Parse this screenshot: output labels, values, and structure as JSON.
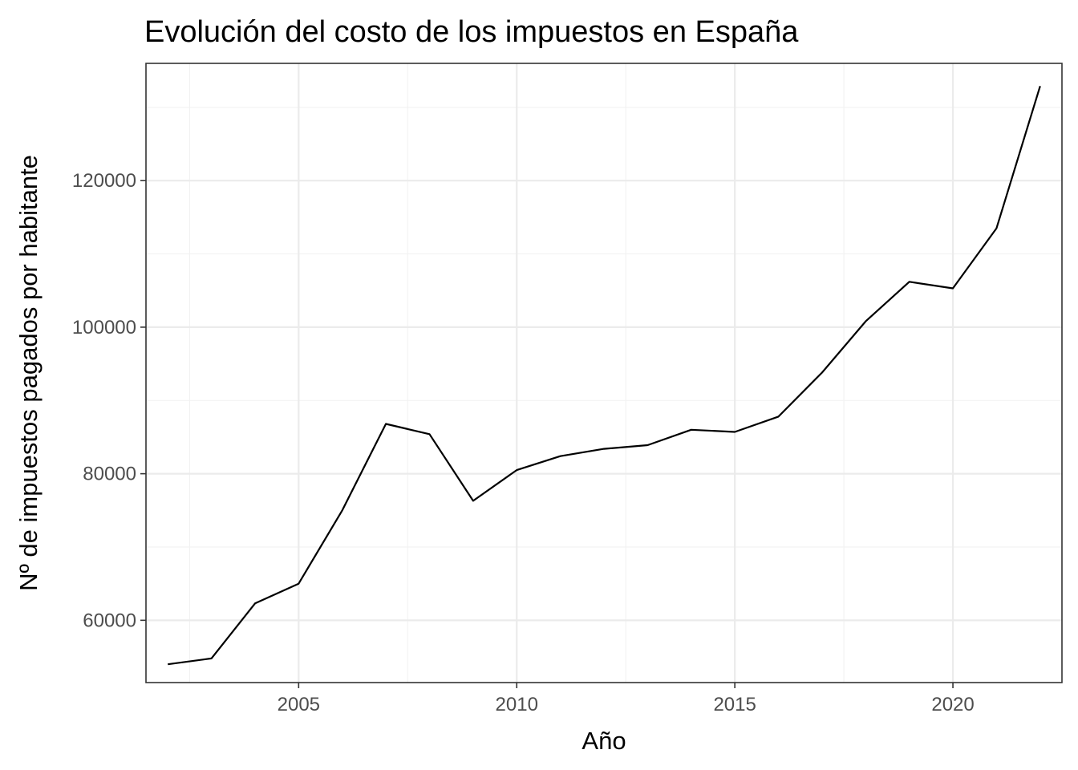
{
  "chart_data": {
    "type": "line",
    "title": "Evolución del costo de los impuestos en España",
    "xlabel": "Año",
    "ylabel": "Nº de impuestos pagados por habitante",
    "xlim": [
      2001.5,
      2022.5
    ],
    "ylim": [
      51500,
      136000
    ],
    "x_major_ticks": [
      2005,
      2010,
      2015,
      2020
    ],
    "x_minor_ticks": [
      2002.5,
      2007.5,
      2012.5,
      2017.5,
      2022.5
    ],
    "y_major_ticks": [
      60000,
      80000,
      100000,
      120000
    ],
    "y_minor_ticks": [
      70000,
      90000,
      110000,
      130000
    ],
    "grid": true,
    "legend": "none",
    "series": [
      {
        "color": "#000000",
        "x": [
          2002,
          2003,
          2004,
          2005,
          2006,
          2007,
          2008,
          2009,
          2010,
          2011,
          2012,
          2013,
          2014,
          2015,
          2016,
          2017,
          2018,
          2019,
          2020,
          2021,
          2022
        ],
        "y": [
          54000,
          54800,
          62300,
          65000,
          75000,
          86800,
          85400,
          76300,
          80500,
          82400,
          83400,
          83900,
          86000,
          85700,
          87800,
          93800,
          100800,
          106200,
          105300,
          113500,
          132900
        ]
      }
    ]
  }
}
